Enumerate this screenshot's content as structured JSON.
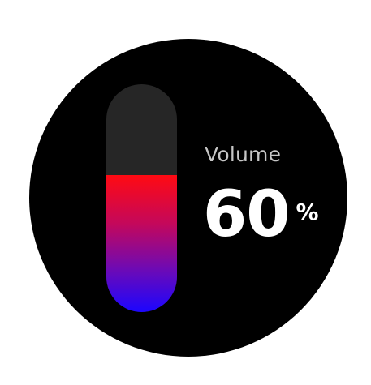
{
  "volume": {
    "label": "Volume",
    "value": "60",
    "unit": "%",
    "level": 0.6,
    "track_color": "#262626",
    "fill_gradient": [
      "#ff0a12",
      "#c5085a",
      "#6a0ab8",
      "#1c06ff"
    ]
  },
  "colors": {
    "face_background": "#000000",
    "label_text": "#c6c6c6",
    "value_text": "#ffffff"
  }
}
